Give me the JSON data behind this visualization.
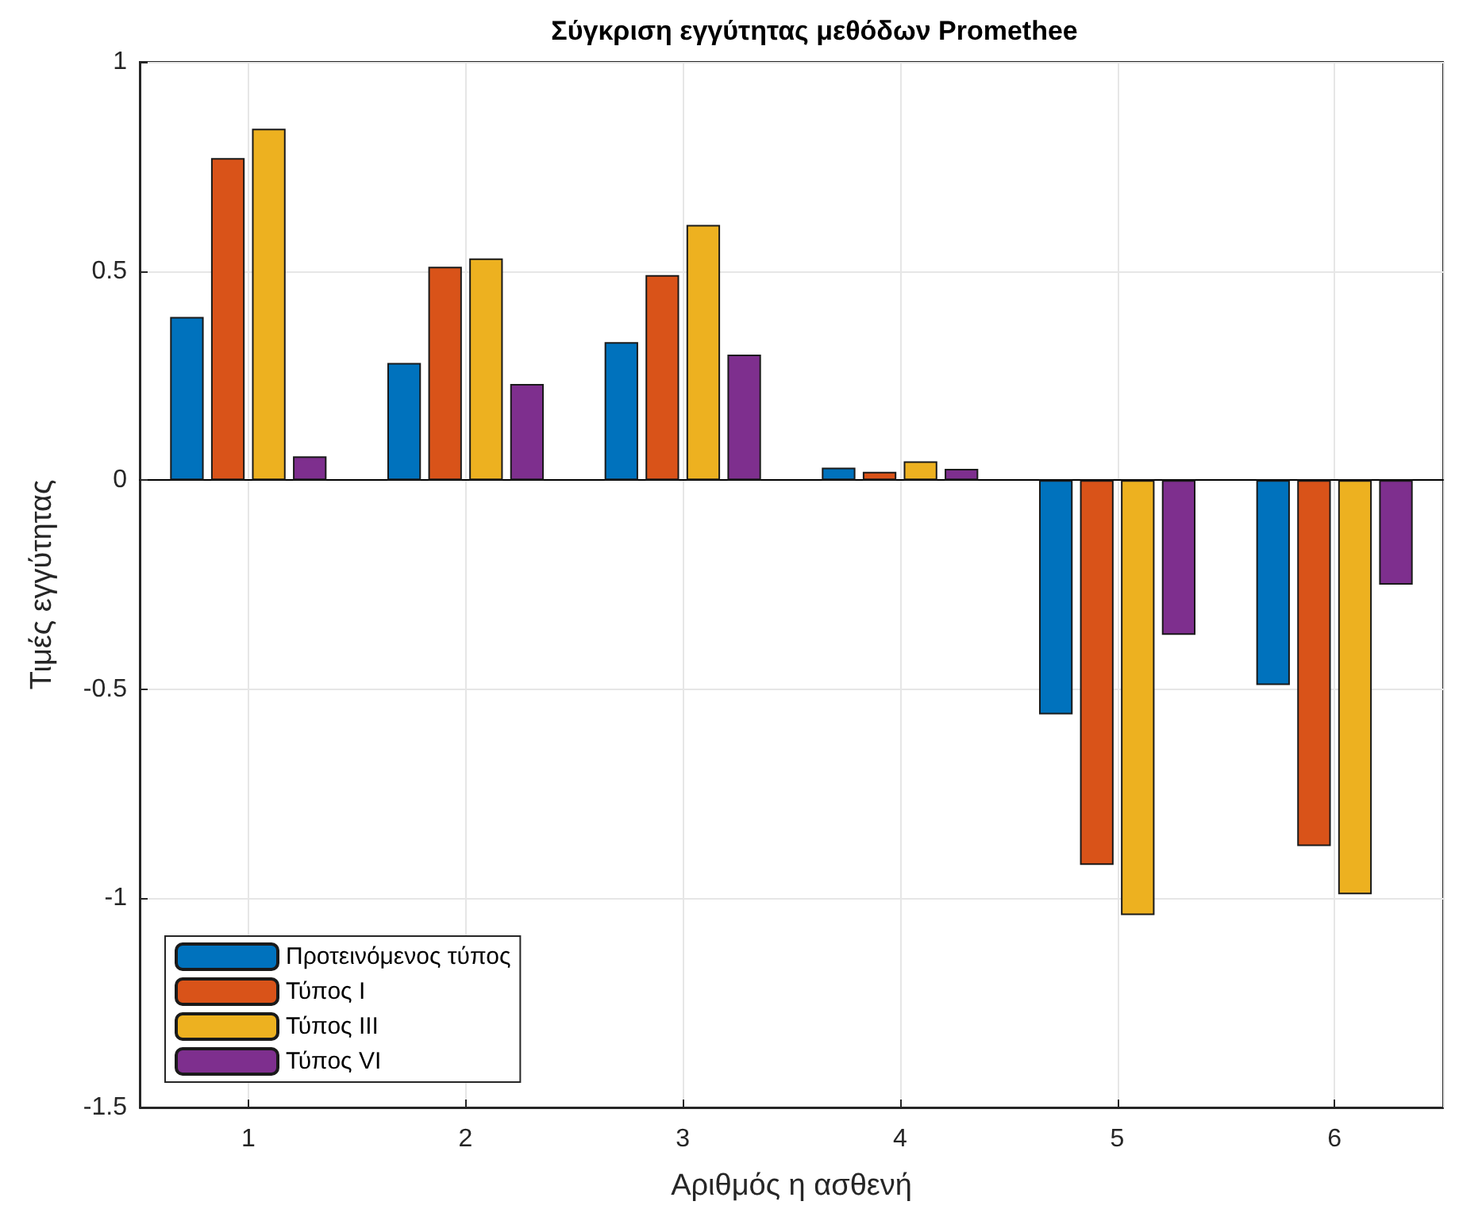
{
  "chart_data": {
    "type": "bar",
    "title": "Σύγκριση εγγύτητας μεθόδων Promethee",
    "xlabel": "Αριθμός η ασθενή",
    "ylabel": "Τιμές εγγύτητας",
    "categories": [
      "1",
      "2",
      "3",
      "4",
      "5",
      "6"
    ],
    "series": [
      {
        "name": "Προτεινόμενος τύπος",
        "color": "#0072bd",
        "values": [
          0.39,
          0.28,
          0.33,
          0.03,
          -0.56,
          -0.49
        ]
      },
      {
        "name": "Τύπος I",
        "color": "#d95319",
        "values": [
          0.77,
          0.51,
          0.49,
          0.02,
          -0.92,
          -0.875
        ]
      },
      {
        "name": "Τύπος III",
        "color": "#edb120",
        "values": [
          0.84,
          0.53,
          0.61,
          0.045,
          -1.04,
          -0.99
        ]
      },
      {
        "name": "Τύπος VI",
        "color": "#7e2f8e",
        "values": [
          0.057,
          0.23,
          0.3,
          0.027,
          -0.37,
          -0.25
        ]
      }
    ],
    "ylim": [
      -1.5,
      1
    ],
    "yticks": [
      -1.5,
      -1,
      -0.5,
      0,
      0.5,
      1
    ],
    "grid": true,
    "legend": "bottom left"
  }
}
